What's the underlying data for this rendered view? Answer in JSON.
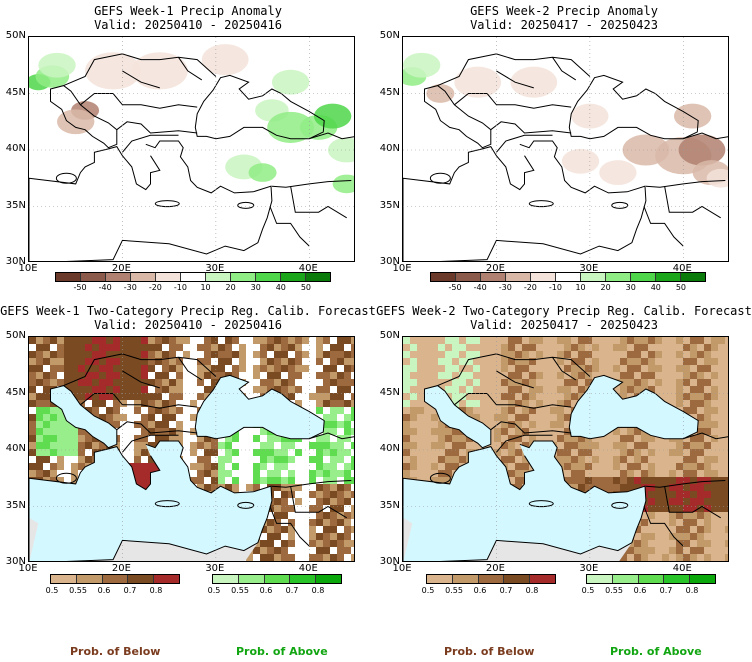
{
  "panels": {
    "p1": {
      "title": "GEFS Week-1 Precip Anomaly",
      "valid": "Valid: 20250410 - 20250416"
    },
    "p2": {
      "title": "GEFS Week-2 Precip Anomaly",
      "valid": "Valid: 20250417 - 20250423"
    },
    "p3": {
      "title": "GEFS Week-1 Two-Category Precip Reg. Calib. Forecast",
      "valid": "Valid: 20250410 - 20250416"
    },
    "p4": {
      "title": "GEFS Week-2 Two-Category Precip Reg. Calib. Forecast",
      "valid": "Valid: 20250417 - 20250423"
    }
  },
  "axes": {
    "lat_labels": [
      "50N",
      "45N",
      "40N",
      "35N",
      "30N"
    ],
    "lon_labels": [
      "10E",
      "20E",
      "30E",
      "40E"
    ]
  },
  "anomaly_colorbar": {
    "labels": [
      "-50",
      "-40",
      "-30",
      "-20",
      "-10",
      "10",
      "20",
      "30",
      "40",
      "50"
    ],
    "colors": [
      "#6b3a2a",
      "#8b5a4a",
      "#b08070",
      "#d9b8a8",
      "#f3e3da",
      "#ffffff",
      "#c9f5c0",
      "#90ec85",
      "#4fd64a",
      "#1aa51a",
      "#0a7a0a"
    ]
  },
  "prob_colorbar": {
    "below_labels": [
      "0.5",
      "0.55",
      "0.6",
      "0.7",
      "0.8"
    ],
    "below_colors": [
      "#d9b48c",
      "#c29a6a",
      "#9c6a3e",
      "#7a4a22",
      "#a52a2a"
    ],
    "above_labels": [
      "0.5",
      "0.55",
      "0.6",
      "0.7",
      "0.8"
    ],
    "above_colors": [
      "#c8f5c0",
      "#98ee8a",
      "#5fdc50",
      "#28c428",
      "#0aa80a"
    ]
  },
  "legend": {
    "below": "Prob. of Below",
    "above": "Prob. of Above",
    "below_color": "#7a3b1e",
    "above_color": "#11a511"
  },
  "colors": {
    "sea": "#d4f8ff",
    "land_gray": "#e6e6e6"
  }
}
